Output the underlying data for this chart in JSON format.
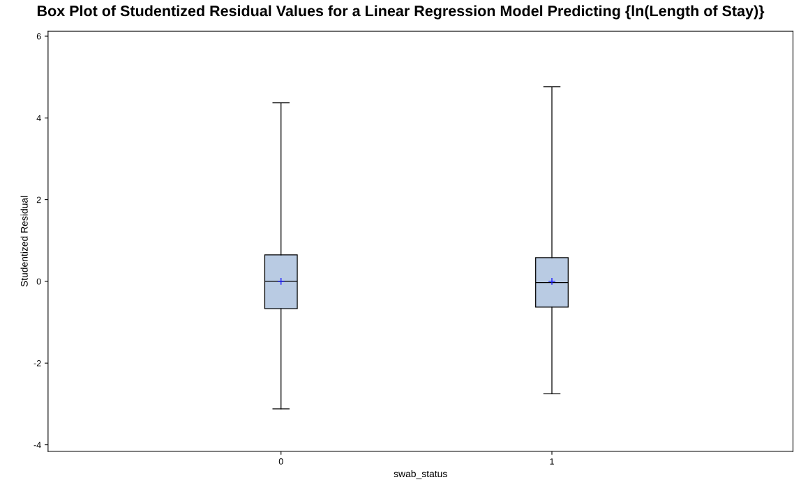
{
  "chart_data": {
    "type": "box",
    "title": "Box Plot of Studentized Residual Values for a Linear Regression Model Predicting {ln(Length of Stay)}",
    "xlabel": "swab_status",
    "ylabel": "Studentized Residual",
    "categories": [
      "0",
      "1"
    ],
    "series": [
      {
        "color": "#b9cbe3",
        "boxes": [
          {
            "low": -3.12,
            "q1": -0.67,
            "median": 0.0,
            "q3": 0.65,
            "high": 4.37,
            "mean": 0.0
          },
          {
            "low": -2.75,
            "q1": -0.63,
            "median": -0.03,
            "q3": 0.58,
            "high": 4.76,
            "mean": 0.0
          }
        ]
      }
    ],
    "ylim": [
      -4.16,
      6.12
    ],
    "yticks": [
      {
        "value": -4,
        "label": "-4"
      },
      {
        "value": -2,
        "label": "-2"
      },
      0,
      2,
      4,
      6
    ],
    "grid": false,
    "legend": false
  }
}
